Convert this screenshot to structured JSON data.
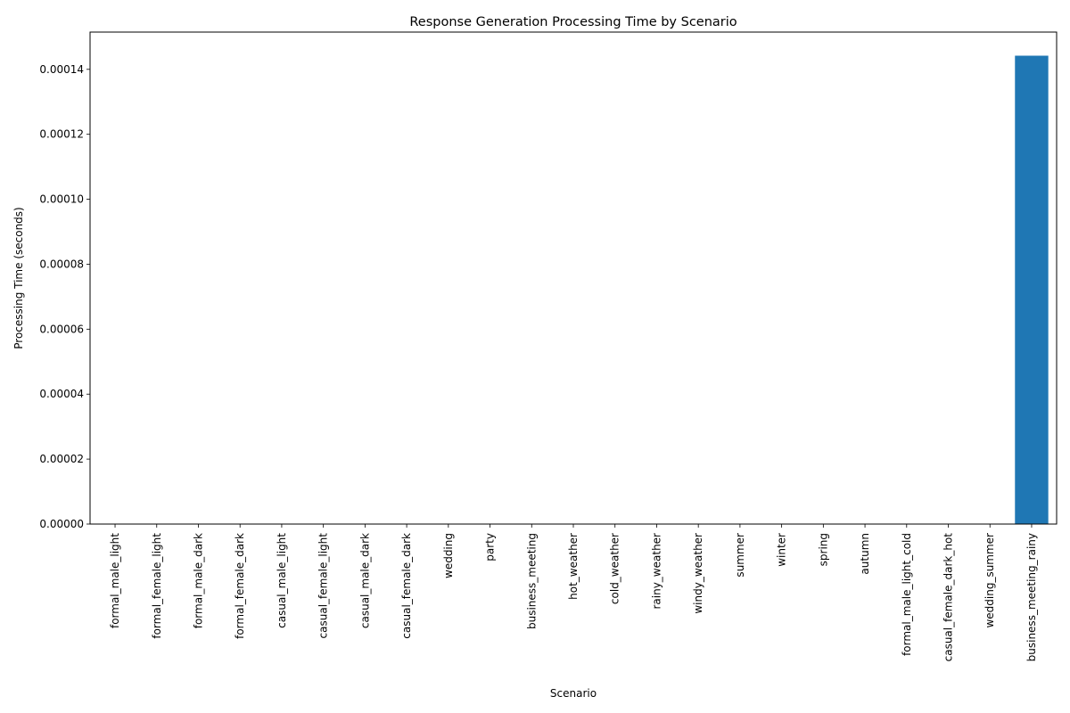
{
  "chart_data": {
    "type": "bar",
    "title": "Response Generation Processing Time by Scenario",
    "xlabel": "Scenario",
    "ylabel": "Processing Time (seconds)",
    "categories": [
      "formal_male_light",
      "formal_female_light",
      "formal_male_dark",
      "formal_female_dark",
      "casual_male_light",
      "casual_female_light",
      "casual_male_dark",
      "casual_female_dark",
      "wedding",
      "party",
      "business_meeting",
      "hot_weather",
      "cold_weather",
      "rainy_weather",
      "windy_weather",
      "summer",
      "winter",
      "spring",
      "autumn",
      "formal_male_light_cold",
      "casual_female_dark_hot",
      "wedding_summer",
      "business_meeting_rainy"
    ],
    "values": [
      0,
      0,
      0,
      0,
      0,
      0,
      0,
      0,
      0,
      0,
      0,
      0,
      0,
      0,
      0,
      0,
      0,
      0,
      0,
      0,
      0,
      0,
      0.0001442
    ],
    "ylim": [
      0,
      0.00015147
    ],
    "yticks": [
      0,
      2e-05,
      4e-05,
      6e-05,
      8e-05,
      0.0001,
      0.00012,
      0.00014
    ],
    "ytick_labels": [
      "0.00000",
      "0.00002",
      "0.00004",
      "0.00006",
      "0.00008",
      "0.00010",
      "0.00012",
      "0.00014"
    ],
    "bar_color": "#1f77b4",
    "grid": false,
    "legend": "none"
  }
}
